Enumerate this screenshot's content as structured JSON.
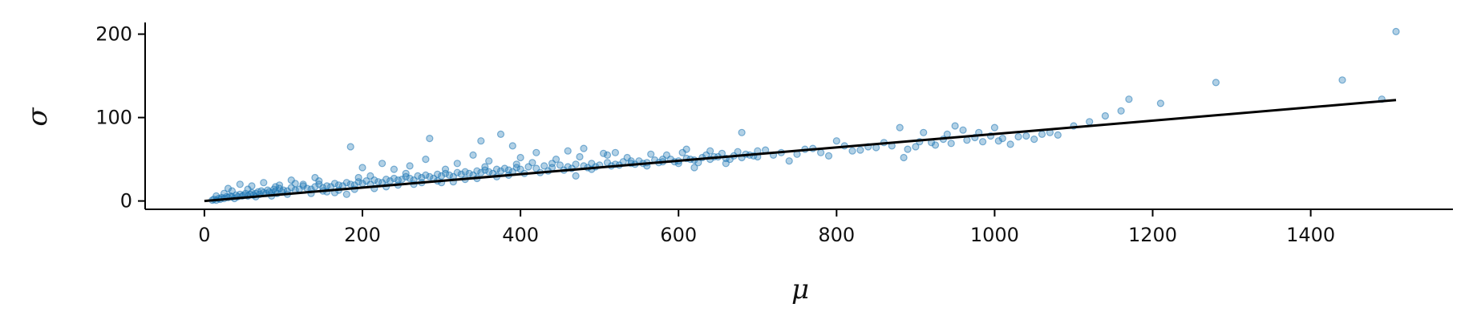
{
  "chart_data": {
    "type": "scatter",
    "title": "",
    "xlabel": "μ",
    "ylabel": "σ",
    "xlim": [
      -75,
      1580
    ],
    "ylim": [
      -10,
      214
    ],
    "x_ticks": [
      0,
      200,
      400,
      600,
      800,
      1000,
      1200,
      1400
    ],
    "x_tick_labels": [
      "0",
      "200",
      "400",
      "600",
      "800",
      "1000",
      "1200",
      "1400"
    ],
    "y_ticks": [
      0,
      100,
      200
    ],
    "y_tick_labels": [
      "0",
      "100",
      "200"
    ],
    "grid": false,
    "legend": "none",
    "series": [
      {
        "kind": "scatter",
        "color": "#1f77b4",
        "opacity": 0.35,
        "points": [
          [
            10,
            1
          ],
          [
            12,
            2
          ],
          [
            15,
            1
          ],
          [
            18,
            3
          ],
          [
            20,
            2
          ],
          [
            22,
            4
          ],
          [
            25,
            3
          ],
          [
            28,
            5
          ],
          [
            30,
            4
          ],
          [
            33,
            6
          ],
          [
            35,
            5
          ],
          [
            38,
            3
          ],
          [
            40,
            7
          ],
          [
            42,
            5
          ],
          [
            45,
            8
          ],
          [
            48,
            6
          ],
          [
            50,
            7
          ],
          [
            52,
            9
          ],
          [
            55,
            6
          ],
          [
            58,
            8
          ],
          [
            60,
            10
          ],
          [
            62,
            7
          ],
          [
            65,
            9
          ],
          [
            68,
            11
          ],
          [
            70,
            8
          ],
          [
            72,
            12
          ],
          [
            75,
            10
          ],
          [
            78,
            9
          ],
          [
            80,
            13
          ],
          [
            82,
            11
          ],
          [
            85,
            10
          ],
          [
            88,
            14
          ],
          [
            90,
            12
          ],
          [
            92,
            9
          ],
          [
            95,
            15
          ],
          [
            98,
            11
          ],
          [
            100,
            13
          ],
          [
            105,
            12
          ],
          [
            110,
            16
          ],
          [
            115,
            13
          ],
          [
            120,
            14
          ],
          [
            125,
            18
          ],
          [
            130,
            15
          ],
          [
            135,
            14
          ],
          [
            140,
            17
          ],
          [
            145,
            20
          ],
          [
            150,
            16
          ],
          [
            155,
            18
          ],
          [
            160,
            17
          ],
          [
            165,
            21
          ],
          [
            170,
            19
          ],
          [
            175,
            18
          ],
          [
            180,
            22
          ],
          [
            185,
            20
          ],
          [
            190,
            19
          ],
          [
            195,
            23
          ],
          [
            200,
            21
          ],
          [
            205,
            24
          ],
          [
            210,
            20
          ],
          [
            215,
            25
          ],
          [
            220,
            23
          ],
          [
            225,
            22
          ],
          [
            230,
            26
          ],
          [
            235,
            24
          ],
          [
            240,
            27
          ],
          [
            245,
            25
          ],
          [
            250,
            26
          ],
          [
            255,
            29
          ],
          [
            260,
            27
          ],
          [
            265,
            25
          ],
          [
            270,
            30
          ],
          [
            275,
            28
          ],
          [
            280,
            31
          ],
          [
            285,
            29
          ],
          [
            290,
            27
          ],
          [
            295,
            32
          ],
          [
            300,
            30
          ],
          [
            305,
            33
          ],
          [
            310,
            31
          ],
          [
            315,
            29
          ],
          [
            320,
            34
          ],
          [
            325,
            32
          ],
          [
            330,
            35
          ],
          [
            335,
            33
          ],
          [
            340,
            31
          ],
          [
            345,
            36
          ],
          [
            350,
            34
          ],
          [
            355,
            37
          ],
          [
            360,
            35
          ],
          [
            365,
            33
          ],
          [
            370,
            38
          ],
          [
            375,
            36
          ],
          [
            380,
            39
          ],
          [
            385,
            37
          ],
          [
            390,
            35
          ],
          [
            395,
            40
          ],
          [
            400,
            38
          ],
          [
            410,
            41
          ],
          [
            420,
            39
          ],
          [
            430,
            42
          ],
          [
            440,
            40
          ],
          [
            450,
            43
          ],
          [
            460,
            41
          ],
          [
            470,
            44
          ],
          [
            480,
            42
          ],
          [
            490,
            45
          ],
          [
            500,
            43
          ],
          [
            510,
            46
          ],
          [
            520,
            44
          ],
          [
            530,
            47
          ],
          [
            540,
            45
          ],
          [
            550,
            48
          ],
          [
            560,
            46
          ],
          [
            570,
            49
          ],
          [
            580,
            47
          ],
          [
            590,
            50
          ],
          [
            600,
            48
          ],
          [
            610,
            51
          ],
          [
            620,
            49
          ],
          [
            630,
            52
          ],
          [
            640,
            50
          ],
          [
            650,
            53
          ],
          [
            660,
            51
          ],
          [
            670,
            54
          ],
          [
            680,
            52
          ],
          [
            690,
            55
          ],
          [
            700,
            53
          ],
          [
            30,
            15
          ],
          [
            45,
            20
          ],
          [
            60,
            18
          ],
          [
            75,
            22
          ],
          [
            90,
            17
          ],
          [
            110,
            25
          ],
          [
            125,
            20
          ],
          [
            140,
            28
          ],
          [
            150,
            12
          ],
          [
            165,
            10
          ],
          [
            180,
            8
          ],
          [
            200,
            40
          ],
          [
            185,
            65
          ],
          [
            210,
            30
          ],
          [
            225,
            45
          ],
          [
            240,
            38
          ],
          [
            260,
            42
          ],
          [
            280,
            50
          ],
          [
            285,
            75
          ],
          [
            300,
            22
          ],
          [
            320,
            45
          ],
          [
            340,
            55
          ],
          [
            360,
            48
          ],
          [
            350,
            72
          ],
          [
            375,
            80
          ],
          [
            390,
            66
          ],
          [
            400,
            52
          ],
          [
            420,
            58
          ],
          [
            440,
            45
          ],
          [
            460,
            60
          ],
          [
            480,
            63
          ],
          [
            470,
            30
          ],
          [
            490,
            38
          ],
          [
            510,
            55
          ],
          [
            520,
            58
          ],
          [
            540,
            48
          ],
          [
            560,
            42
          ],
          [
            580,
            50
          ],
          [
            600,
            45
          ],
          [
            610,
            62
          ],
          [
            620,
            40
          ],
          [
            640,
            60
          ],
          [
            660,
            45
          ],
          [
            680,
            82
          ],
          [
            700,
            60
          ],
          [
            720,
            55
          ],
          [
            740,
            48
          ],
          [
            760,
            62
          ],
          [
            780,
            58
          ],
          [
            800,
            72
          ],
          [
            820,
            60
          ],
          [
            840,
            65
          ],
          [
            860,
            70
          ],
          [
            880,
            88
          ],
          [
            885,
            52
          ],
          [
            900,
            65
          ],
          [
            910,
            82
          ],
          [
            920,
            70
          ],
          [
            940,
            80
          ],
          [
            950,
            90
          ],
          [
            960,
            85
          ],
          [
            980,
            82
          ],
          [
            1000,
            88
          ],
          [
            1010,
            75
          ],
          [
            1020,
            68
          ],
          [
            1040,
            78
          ],
          [
            1060,
            80
          ],
          [
            1070,
            82
          ],
          [
            1100,
            90
          ],
          [
            1120,
            95
          ],
          [
            1140,
            102
          ],
          [
            1160,
            108
          ],
          [
            1170,
            122
          ],
          [
            1210,
            117
          ],
          [
            1280,
            142
          ],
          [
            1440,
            145
          ],
          [
            1490,
            122
          ],
          [
            1508,
            203
          ],
          [
            15,
            6
          ],
          [
            25,
            9
          ],
          [
            35,
            12
          ],
          [
            55,
            14
          ],
          [
            65,
            5
          ],
          [
            85,
            6
          ],
          [
            95,
            19
          ],
          [
            105,
            8
          ],
          [
            115,
            21
          ],
          [
            135,
            9
          ],
          [
            145,
            24
          ],
          [
            155,
            11
          ],
          [
            170,
            13
          ],
          [
            190,
            14
          ],
          [
            195,
            28
          ],
          [
            215,
            15
          ],
          [
            230,
            17
          ],
          [
            245,
            19
          ],
          [
            255,
            33
          ],
          [
            265,
            20
          ],
          [
            275,
            22
          ],
          [
            295,
            24
          ],
          [
            305,
            38
          ],
          [
            315,
            23
          ],
          [
            330,
            26
          ],
          [
            345,
            27
          ],
          [
            355,
            41
          ],
          [
            370,
            29
          ],
          [
            385,
            31
          ],
          [
            395,
            44
          ],
          [
            405,
            33
          ],
          [
            415,
            46
          ],
          [
            425,
            34
          ],
          [
            435,
            36
          ],
          [
            445,
            50
          ],
          [
            455,
            37
          ],
          [
            465,
            39
          ],
          [
            475,
            53
          ],
          [
            485,
            40
          ],
          [
            495,
            41
          ],
          [
            505,
            57
          ],
          [
            515,
            42
          ],
          [
            525,
            43
          ],
          [
            535,
            52
          ],
          [
            545,
            44
          ],
          [
            555,
            45
          ],
          [
            565,
            56
          ],
          [
            575,
            46
          ],
          [
            585,
            55
          ],
          [
            595,
            47
          ],
          [
            605,
            58
          ],
          [
            615,
            50
          ],
          [
            625,
            46
          ],
          [
            635,
            55
          ],
          [
            645,
            53
          ],
          [
            655,
            57
          ],
          [
            665,
            50
          ],
          [
            675,
            59
          ],
          [
            685,
            56
          ],
          [
            695,
            54
          ],
          [
            710,
            61
          ],
          [
            730,
            58
          ],
          [
            750,
            56
          ],
          [
            770,
            63
          ],
          [
            790,
            54
          ],
          [
            810,
            66
          ],
          [
            830,
            61
          ],
          [
            850,
            64
          ],
          [
            870,
            66
          ],
          [
            890,
            62
          ],
          [
            905,
            71
          ],
          [
            925,
            67
          ],
          [
            935,
            74
          ],
          [
            945,
            69
          ],
          [
            965,
            73
          ],
          [
            975,
            76
          ],
          [
            985,
            71
          ],
          [
            995,
            78
          ],
          [
            1005,
            72
          ],
          [
            1030,
            77
          ],
          [
            1050,
            74
          ],
          [
            1080,
            79
          ]
        ]
      },
      {
        "kind": "line",
        "color": "#000000",
        "points": [
          [
            0,
            0
          ],
          [
            1508,
            121
          ]
        ]
      }
    ]
  }
}
